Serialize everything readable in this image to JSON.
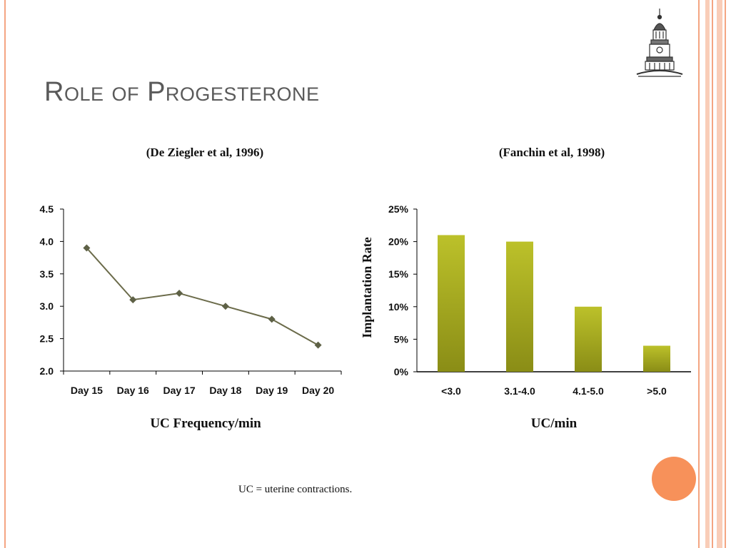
{
  "slide": {
    "title": "Role of Progesterone",
    "footnote": "UC = uterine contractions."
  },
  "colors": {
    "frame": "#f4a582",
    "frame_light": "#f9cdb8",
    "line_series": "#6b6b4a",
    "bar_top": "#bcc12a",
    "bar_bottom": "#8a8d16",
    "accent_circle": "#f7915a",
    "title": "#5a5a5a"
  },
  "icons": {
    "logo": "domed-building-engraving-icon",
    "accent": "orange-circle-icon"
  },
  "chart_data": [
    {
      "type": "line",
      "citation": "(De Ziegler et al, 1996)",
      "xlabel": "UC Frequency/min",
      "ylabel": "",
      "categories": [
        "Day 15",
        "Day 16",
        "Day 17",
        "Day 18",
        "Day 19",
        "Day 20"
      ],
      "values": [
        3.9,
        3.1,
        3.2,
        3.0,
        2.8,
        2.4
      ],
      "ylim": [
        2.0,
        4.5
      ],
      "yticks": [
        "2.0",
        "2.5",
        "3.0",
        "3.5",
        "4.0",
        "4.5"
      ],
      "marker": "diamond",
      "grid": false,
      "legend": "none"
    },
    {
      "type": "bar",
      "citation": "(Fanchin et al, 1998)",
      "xlabel": "UC/min",
      "ylabel": "Implantation Rate",
      "categories": [
        "<3.0",
        "3.1-4.0",
        "4.1-5.0",
        ">5.0"
      ],
      "values": [
        21,
        20,
        10,
        4
      ],
      "ylim": [
        0,
        25
      ],
      "yticks": [
        "0%",
        "5%",
        "10%",
        "15%",
        "20%",
        "25%"
      ],
      "grid": false,
      "legend": "none"
    }
  ]
}
